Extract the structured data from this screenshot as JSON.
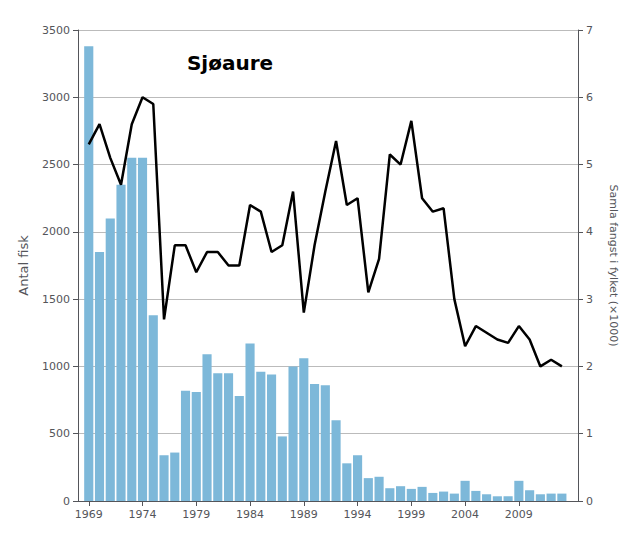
{
  "chart_data": {
    "type": "bar",
    "title": "Sjøaure",
    "ylabel": "Antal fisk",
    "y2label": "Samla fangst i fylket (×1000)",
    "x": [
      1969,
      1970,
      1971,
      1972,
      1973,
      1974,
      1975,
      1976,
      1977,
      1978,
      1979,
      1980,
      1981,
      1982,
      1983,
      1984,
      1985,
      1986,
      1987,
      1988,
      1989,
      1990,
      1991,
      1992,
      1993,
      1994,
      1995,
      1996,
      1997,
      1998,
      1999,
      2000,
      2001,
      2002,
      2003,
      2004,
      2005,
      2006,
      2007,
      2008,
      2009,
      2010,
      2011,
      2012,
      2013
    ],
    "series": [
      {
        "type": "bar",
        "color": "#7db8d9",
        "values": [
          3380,
          1850,
          2100,
          2350,
          2550,
          2550,
          1380,
          340,
          360,
          820,
          810,
          1090,
          950,
          950,
          780,
          1170,
          960,
          940,
          480,
          1000,
          1060,
          870,
          860,
          600,
          280,
          340,
          170,
          180,
          95,
          110,
          90,
          105,
          60,
          70,
          55,
          150,
          75,
          50,
          35,
          35,
          150,
          80,
          50,
          55,
          55
        ]
      },
      {
        "type": "line",
        "color": "#000000",
        "axis": "y2",
        "values": [
          5.3,
          5.6,
          5.1,
          4.7,
          5.6,
          6.0,
          5.9,
          2.7,
          3.8,
          3.8,
          3.4,
          3.7,
          3.7,
          3.5,
          3.5,
          4.4,
          4.3,
          3.7,
          3.8,
          4.6,
          2.8,
          3.8,
          4.6,
          5.35,
          4.4,
          4.5,
          3.1,
          3.6,
          5.15,
          5.0,
          5.65,
          4.5,
          4.3,
          4.35,
          3.0,
          2.3,
          2.6,
          2.5,
          2.4,
          2.35,
          2.6,
          2.4,
          2.0,
          2.1,
          2.0
        ]
      }
    ],
    "xlim": [
      1968,
      2014.5
    ],
    "xticks": [
      1969,
      1974,
      1979,
      1984,
      1989,
      1994,
      1999,
      2004,
      2009
    ],
    "ylim": [
      0,
      3500
    ],
    "yticks": [
      0,
      500,
      1000,
      1500,
      2000,
      2500,
      3000,
      3500
    ],
    "y2lim": [
      0,
      7
    ],
    "y2ticks": [
      0,
      1,
      2,
      3,
      4,
      5,
      6,
      7
    ],
    "grid": true
  }
}
